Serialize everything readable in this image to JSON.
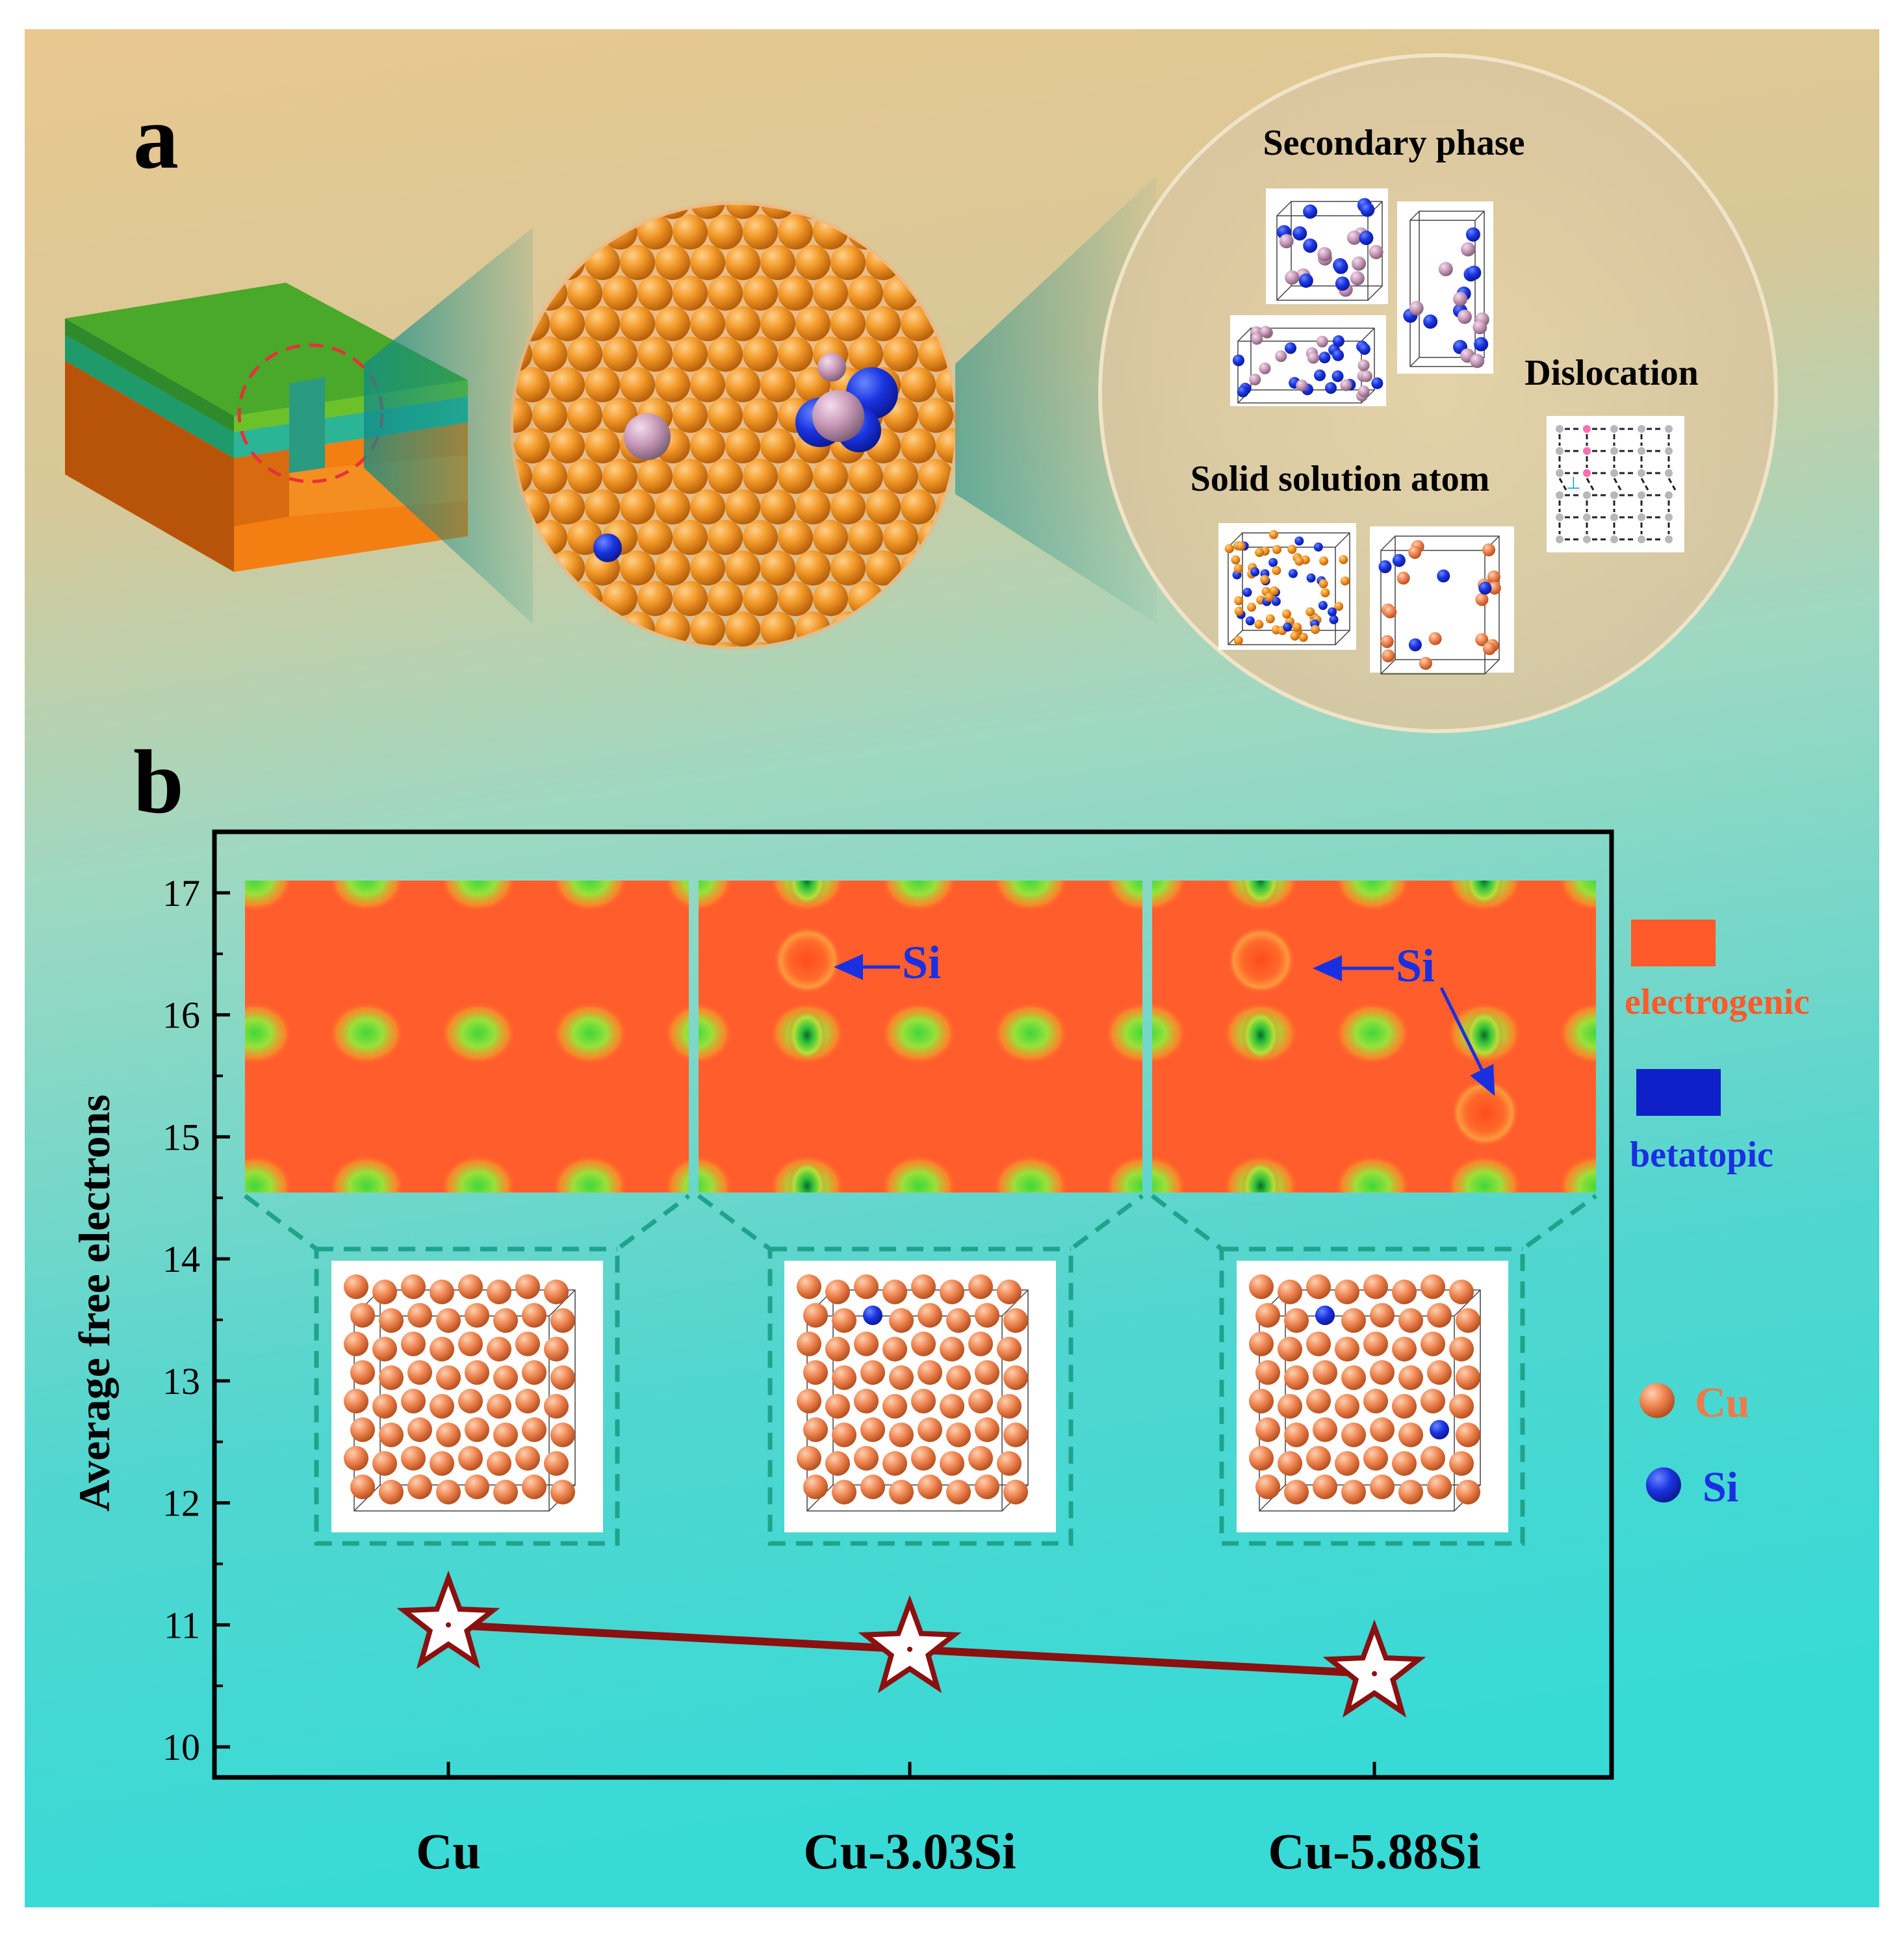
{
  "panel_a": {
    "label": "a",
    "callouts": {
      "secondary_phase": "Secondary phase",
      "dislocation": "Dislocation",
      "solid_solution": "Solid solution atom"
    }
  },
  "panel_b": {
    "label": "b",
    "si_annotation": "Si",
    "colorbar": {
      "high": "electrogenic",
      "low": "betatopic"
    },
    "atom_legend": {
      "cu": "Cu",
      "si": "Si"
    }
  },
  "colors": {
    "cu_atom": "#f07f3a",
    "si_atom": "#1030d8",
    "line": "#8b1010",
    "electrogenic": "#ff5a2a",
    "betatopic": "#1020c8",
    "teal_dash": "#1fa38c"
  },
  "chart_data": {
    "type": "line",
    "title": "",
    "xlabel": "",
    "ylabel": "Average free electrons",
    "categories": [
      "Cu",
      "Cu-3.03Si",
      "Cu-5.88Si"
    ],
    "values": [
      11.0,
      10.8,
      10.6
    ],
    "ylim": [
      9.75,
      17.5
    ],
    "yticks": [
      10,
      11,
      12,
      13,
      14,
      15,
      16,
      17
    ],
    "marker": "star",
    "grid": false
  }
}
